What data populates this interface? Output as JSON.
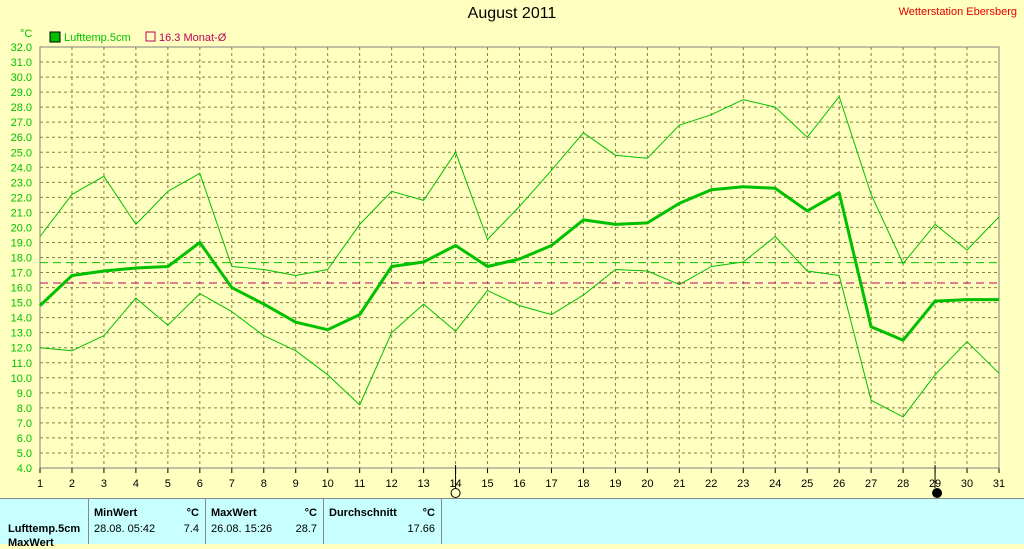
{
  "header": {
    "title": "August 2011",
    "station": "Wetterstation Ebersberg"
  },
  "legend": {
    "series_label": "Lufttemp.5cm",
    "avg_label": "16.3 Monat-Ø"
  },
  "colors": {
    "background": "#ffffc0",
    "series": "#00c000",
    "avg_line": "#c00060",
    "stats_bg": "#c8ffff"
  },
  "icons": {
    "marker_14": "full-moon-icon",
    "marker_29": "new-moon-icon"
  },
  "stats": {
    "row_label": "Lufttemp.5cm",
    "row2_label": "MaxWert",
    "min": {
      "header": "MinWert",
      "unit": "°C",
      "datetime": "28.08.  05:42",
      "value": "7.4"
    },
    "max": {
      "header": "MaxWert",
      "unit": "°C",
      "datetime": "26.08.  15:26",
      "value": "28.7"
    },
    "avg": {
      "header": "Durchschnitt",
      "unit": "°C",
      "value": "17.66"
    }
  },
  "chart_data": {
    "type": "line",
    "ylabel": "°C",
    "ylim": [
      4.0,
      32.0
    ],
    "ytick_step": 1.0,
    "x": [
      1,
      2,
      3,
      4,
      5,
      6,
      7,
      8,
      9,
      10,
      11,
      12,
      13,
      14,
      15,
      16,
      17,
      18,
      19,
      20,
      21,
      22,
      23,
      24,
      25,
      26,
      27,
      28,
      29,
      30,
      31
    ],
    "grid": true,
    "series": [
      {
        "name": "Lufttemp.5cm",
        "role": "mean",
        "values": [
          14.8,
          16.8,
          17.1,
          17.3,
          17.4,
          19.0,
          16.0,
          14.9,
          13.7,
          13.2,
          14.2,
          17.4,
          17.7,
          18.8,
          17.4,
          17.9,
          18.8,
          20.5,
          20.2,
          20.3,
          21.6,
          22.5,
          22.7,
          22.6,
          21.1,
          22.3,
          13.4,
          12.5,
          15.1,
          15.2,
          15.2
        ]
      },
      {
        "role": "max",
        "values": [
          19.4,
          22.2,
          23.4,
          20.2,
          22.4,
          23.6,
          17.4,
          17.2,
          16.8,
          17.2,
          20.2,
          22.4,
          21.8,
          25.0,
          19.2,
          21.4,
          23.8,
          26.3,
          24.8,
          24.6,
          26.8,
          27.5,
          28.5,
          28.0,
          26.0,
          28.7,
          22.2,
          17.6,
          20.2,
          18.5,
          20.7
        ]
      },
      {
        "role": "min",
        "values": [
          12.0,
          11.8,
          12.8,
          15.3,
          13.5,
          15.6,
          14.4,
          12.8,
          11.8,
          10.2,
          8.2,
          13.0,
          14.9,
          13.1,
          15.8,
          14.8,
          14.2,
          15.5,
          17.2,
          17.1,
          16.2,
          17.4,
          17.7,
          19.4,
          17.1,
          16.8,
          8.5,
          7.4,
          10.2,
          12.4,
          10.3
        ]
      }
    ],
    "reference_lines": [
      {
        "label": "16.3 Monat-Ø",
        "value": 16.3,
        "style": "dashed"
      },
      {
        "value": 17.66,
        "style": "dashed"
      }
    ]
  }
}
